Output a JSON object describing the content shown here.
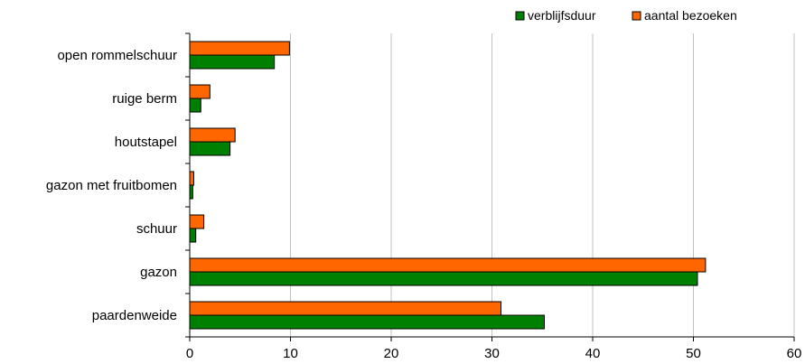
{
  "chart_data": {
    "type": "bar",
    "orientation": "horizontal",
    "categories": [
      "paardenweide",
      "gazon",
      "schuur",
      "gazon met fruitbomen",
      "houtstapel",
      "ruige berm",
      "open rommelschuur"
    ],
    "series": [
      {
        "name": "verblijfsduur",
        "color": "#008000",
        "values": [
          35.2,
          50.4,
          0.6,
          0.3,
          4.0,
          1.1,
          8.4
        ]
      },
      {
        "name": "aantal bezoeken",
        "color": "#ff6600",
        "values": [
          30.9,
          51.2,
          1.4,
          0.4,
          4.5,
          2.0,
          9.9
        ]
      }
    ],
    "xticks": [
      "0",
      "10",
      "20",
      "30",
      "40",
      "50",
      "60"
    ],
    "xlim": [
      0,
      60
    ],
    "grid": "vertical",
    "legend": "top-right",
    "title": "",
    "xlabel": "",
    "ylabel": ""
  }
}
